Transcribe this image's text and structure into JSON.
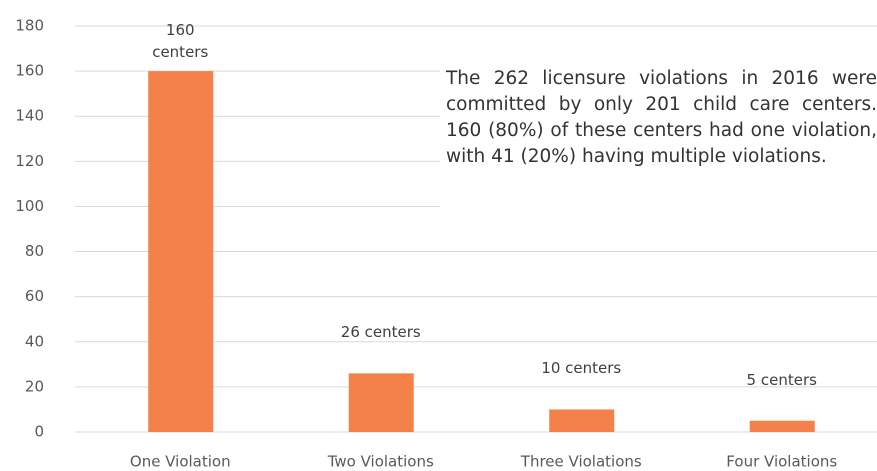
{
  "chart_data": {
    "type": "bar",
    "categories": [
      "One Violation",
      "Two Violations",
      "Three Violations",
      "Four Violations"
    ],
    "values": [
      160,
      26,
      10,
      5
    ],
    "value_labels": [
      "160 centers",
      "26 centers",
      "10 centers",
      "5 centers"
    ],
    "color": "#f4804a",
    "ylim": [
      0,
      180
    ],
    "yticks": [
      0,
      20,
      40,
      60,
      80,
      100,
      120,
      140,
      160,
      180
    ],
    "grid": true,
    "annotation": "The 262 licensure violations in 2016 were committed by only 201 child care centers. 160 (80%) of these centers had one violation, with 41 (20%) having multiple violations."
  }
}
